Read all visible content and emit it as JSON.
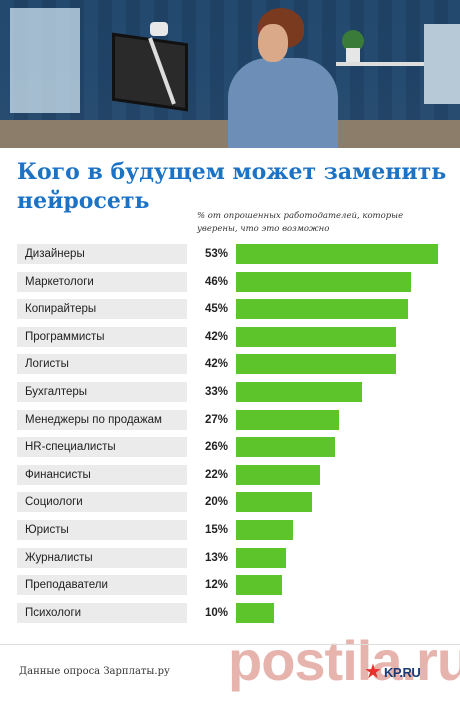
{
  "title": "Кого в будущем может заменить нейросеть",
  "chart_data": {
    "type": "bar",
    "orientation": "horizontal",
    "title": "Кого в будущем может заменить нейросеть",
    "subtitle": "% от опрошенных работодателей, которые уверены, что это возможно",
    "unit": "%",
    "categories": [
      "Дизайнеры",
      "Маркетологи",
      "Копирайтеры",
      "Программисты",
      "Логисты",
      "Бухгалтеры",
      "Менеджеры по продажам",
      "HR-специалисты",
      "Финансисты",
      "Социологи",
      "Юристы",
      "Журналисты",
      "Преподаватели",
      "Психологи"
    ],
    "values": [
      53,
      46,
      45,
      42,
      42,
      33,
      27,
      26,
      22,
      20,
      15,
      13,
      12,
      10
    ],
    "value_labels": [
      "53%",
      "46%",
      "45%",
      "42%",
      "42%",
      "33%",
      "27%",
      "26%",
      "22%",
      "20%",
      "15%",
      "13%",
      "12%",
      "10%"
    ],
    "bar_color": "#5dc42c",
    "label_background": "#ebebeb",
    "grid": false,
    "legend": "none"
  },
  "source": "Данные опроса Зарплаты.ру",
  "logo": {
    "text": "KP.RU"
  },
  "watermark": "postila.ru",
  "colors": {
    "title": "#1c73c5",
    "bar": "#5dc42c"
  }
}
